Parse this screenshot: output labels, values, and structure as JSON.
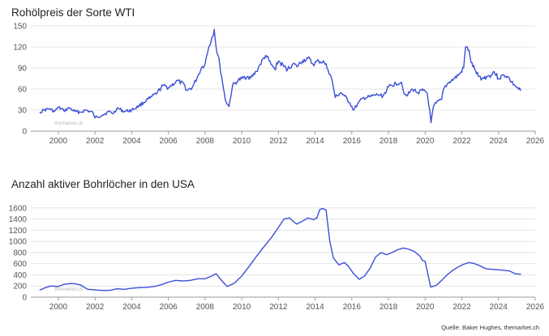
{
  "chart_data": [
    {
      "type": "line",
      "title": "Rohölpreis der Sorte WTI",
      "xlabel": "",
      "ylabel": "",
      "xlim": [
        1998.5,
        2026
      ],
      "ylim": [
        0,
        150
      ],
      "x_ticks": [
        2000,
        2002,
        2004,
        2006,
        2008,
        2010,
        2012,
        2014,
        2016,
        2018,
        2020,
        2022,
        2024,
        2026
      ],
      "y_ticks": [
        0,
        30,
        60,
        90,
        120,
        150
      ],
      "grid": true,
      "watermark": "themarket.ch",
      "color": "#3b4fd8",
      "series": [
        {
          "x": [
            1999.0,
            1999.2,
            1999.5,
            1999.8,
            2000.0,
            2000.3,
            2000.6,
            2000.9,
            2001.2,
            2001.5,
            2001.9,
            2002.0,
            2002.4,
            2002.8,
            2003.0,
            2003.2,
            2003.6,
            2004.0,
            2004.4,
            2004.8,
            2005.0,
            2005.4,
            2005.7,
            2006.0,
            2006.5,
            2006.9,
            2007.0,
            2007.3,
            2007.6,
            2007.8,
            2008.0,
            2008.2,
            2008.4,
            2008.5,
            2008.6,
            2008.8,
            2008.95,
            2009.1,
            2009.3,
            2009.5,
            2009.8,
            2010.0,
            2010.3,
            2010.5,
            2010.8,
            2011.0,
            2011.3,
            2011.6,
            2011.8,
            2012.0,
            2012.3,
            2012.5,
            2012.8,
            2013.0,
            2013.3,
            2013.6,
            2013.9,
            2014.2,
            2014.5,
            2014.7,
            2014.9,
            2015.1,
            2015.4,
            2015.6,
            2015.9,
            2016.1,
            2016.3,
            2016.6,
            2017.0,
            2017.4,
            2017.7,
            2018.0,
            2018.4,
            2018.7,
            2018.9,
            2019.0,
            2019.3,
            2019.6,
            2019.9,
            2020.1,
            2020.25,
            2020.32,
            2020.45,
            2020.6,
            2020.9,
            2021.0,
            2021.3,
            2021.6,
            2021.9,
            2022.1,
            2022.2,
            2022.4,
            2022.5,
            2022.7,
            2022.9,
            2023.1,
            2023.4,
            2023.6,
            2023.75,
            2024.0,
            2024.3,
            2024.5,
            2024.7,
            2024.9,
            2025.0,
            2025.2
          ],
          "y": [
            27,
            30,
            32,
            28,
            34,
            29,
            33,
            28,
            27,
            30,
            26,
            19,
            23,
            28,
            25,
            33,
            28,
            30,
            36,
            44,
            47,
            55,
            65,
            62,
            72,
            65,
            58,
            62,
            78,
            90,
            96,
            120,
            135,
            145,
            120,
            95,
            70,
            45,
            35,
            65,
            72,
            75,
            78,
            76,
            85,
            95,
            108,
            95,
            88,
            100,
            92,
            88,
            96,
            92,
            100,
            104,
            95,
            100,
            98,
            88,
            75,
            48,
            55,
            50,
            40,
            30,
            38,
            47,
            49,
            52,
            50,
            63,
            68,
            70,
            52,
            50,
            60,
            55,
            58,
            55,
            30,
            12,
            35,
            40,
            45,
            60,
            70,
            75,
            82,
            90,
            120,
            115,
            98,
            88,
            78,
            75,
            78,
            80,
            85,
            75,
            80,
            78,
            70,
            65,
            62,
            58
          ]
        }
      ]
    },
    {
      "type": "line",
      "title": "Anzahl aktiver Bohrlöcher in den USA",
      "xlabel": "",
      "ylabel": "",
      "xlim": [
        1998.5,
        2026
      ],
      "ylim": [
        0,
        1800
      ],
      "x_ticks": [
        2000,
        2002,
        2004,
        2006,
        2008,
        2010,
        2012,
        2014,
        2016,
        2018,
        2020,
        2022,
        2024,
        2026
      ],
      "y_ticks": [
        0,
        200,
        400,
        600,
        800,
        1000,
        1200,
        1400,
        1600
      ],
      "grid": true,
      "watermark": "themarket.ch",
      "color": "#3b4fd8",
      "series": [
        {
          "x": [
            1999.0,
            1999.3,
            1999.6,
            2000.0,
            2000.3,
            2000.7,
            2000.9,
            2001.2,
            2001.6,
            2002.0,
            2002.4,
            2002.8,
            2003.2,
            2003.6,
            2004.0,
            2004.4,
            2004.8,
            2005.2,
            2005.6,
            2006.0,
            2006.4,
            2006.8,
            2007.2,
            2007.6,
            2008.0,
            2008.3,
            2008.6,
            2008.9,
            2009.2,
            2009.6,
            2010.0,
            2010.4,
            2010.8,
            2011.2,
            2011.6,
            2012.0,
            2012.3,
            2012.6,
            2012.8,
            2013.0,
            2013.3,
            2013.6,
            2013.9,
            2014.1,
            2014.25,
            2014.4,
            2014.6,
            2014.8,
            2015.0,
            2015.3,
            2015.6,
            2015.8,
            2016.1,
            2016.4,
            2016.7,
            2017.0,
            2017.3,
            2017.6,
            2017.9,
            2018.2,
            2018.5,
            2018.8,
            2019.1,
            2019.4,
            2019.7,
            2019.85,
            2020.0,
            2020.3,
            2020.6,
            2020.9,
            2021.2,
            2021.5,
            2021.8,
            2022.1,
            2022.4,
            2022.7,
            2023.0,
            2023.3,
            2023.6,
            2024.0,
            2024.3,
            2024.6,
            2024.9,
            2025.2
          ],
          "y": [
            130,
            170,
            200,
            190,
            230,
            245,
            240,
            220,
            140,
            130,
            120,
            120,
            150,
            140,
            160,
            170,
            175,
            190,
            220,
            270,
            300,
            290,
            300,
            330,
            330,
            370,
            420,
            300,
            190,
            250,
            380,
            550,
            730,
            900,
            1060,
            1250,
            1400,
            1420,
            1360,
            1310,
            1360,
            1420,
            1390,
            1420,
            1570,
            1590,
            1560,
            1000,
            700,
            580,
            620,
            560,
            420,
            320,
            380,
            520,
            720,
            800,
            760,
            800,
            850,
            880,
            860,
            820,
            740,
            660,
            640,
            180,
            210,
            300,
            400,
            480,
            540,
            590,
            620,
            600,
            560,
            510,
            500,
            490,
            480,
            470,
            420,
            410
          ]
        }
      ]
    }
  ],
  "source": "Quelle: Baker Hughes, themarket.ch"
}
